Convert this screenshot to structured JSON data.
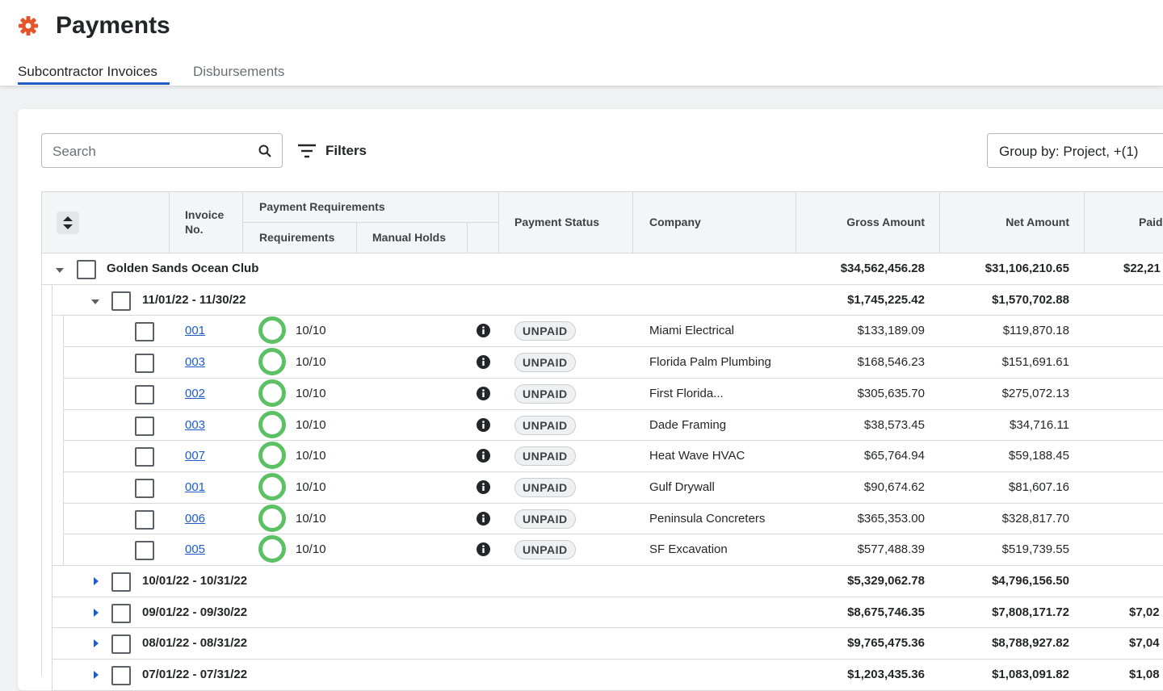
{
  "header": {
    "title": "Payments"
  },
  "tabs": [
    "Subcontractor Invoices",
    "Disbursements"
  ],
  "toolbar": {
    "search_placeholder": "Search",
    "filters": "Filters",
    "group_by": "Group by: Project, +(1)"
  },
  "table": {
    "columns": {
      "invoice_no": "Invoice No.",
      "payment_requirements": "Payment Requirements",
      "requirements": "Requirements",
      "manual_holds": "Manual Holds",
      "payment_status": "Payment Status",
      "company": "Company",
      "gross": "Gross Amount",
      "net": "Net Amount",
      "paid": "Paid"
    },
    "project": {
      "name": "Golden Sands Ocean Club",
      "gross": "$34,562,456.28",
      "net": "$31,106,210.65",
      "paid": "$22,21"
    },
    "groups": [
      {
        "range": "11/01/22 - 11/30/22",
        "gross": "$1,745,225.42",
        "net": "$1,570,702.88",
        "expanded": true,
        "rows": [
          {
            "invoice": "001",
            "requirements": "10/10",
            "status": "UNPAID",
            "company": "Miami Electrical",
            "gross": "$133,189.09",
            "net": "$119,870.18"
          },
          {
            "invoice": "003",
            "requirements": "10/10",
            "status": "UNPAID",
            "company": "Florida Palm Plumbing",
            "gross": "$168,546.23",
            "net": "$151,691.61"
          },
          {
            "invoice": "002",
            "requirements": "10/10",
            "status": "UNPAID",
            "company": "First Florida...",
            "gross": "$305,635.70",
            "net": "$275,072.13"
          },
          {
            "invoice": "003",
            "requirements": "10/10",
            "status": "UNPAID",
            "company": "Dade Framing",
            "gross": "$38,573.45",
            "net": "$34,716.11"
          },
          {
            "invoice": "007",
            "requirements": "10/10",
            "status": "UNPAID",
            "company": "Heat Wave HVAC",
            "gross": "$65,764.94",
            "net": "$59,188.45"
          },
          {
            "invoice": "001",
            "requirements": "10/10",
            "status": "UNPAID",
            "company": "Gulf Drywall",
            "gross": "$90,674.62",
            "net": "$81,607.16"
          },
          {
            "invoice": "006",
            "requirements": "10/10",
            "status": "UNPAID",
            "company": "Peninsula Concreters",
            "gross": "$365,353.00",
            "net": "$328,817.70"
          },
          {
            "invoice": "005",
            "requirements": "10/10",
            "status": "UNPAID",
            "company": "SF Excavation",
            "gross": "$577,488.39",
            "net": "$519,739.55"
          }
        ]
      },
      {
        "range": "10/01/22 - 10/31/22",
        "gross": "$5,329,062.78",
        "net": "$4,796,156.50"
      },
      {
        "range": "09/01/22 - 09/30/22",
        "gross": "$8,675,746.35",
        "net": "$7,808,171.72",
        "paid": "$7,02"
      },
      {
        "range": "08/01/22 - 08/31/22",
        "gross": "$9,765,475.36",
        "net": "$8,788,927.82",
        "paid": "$7,04"
      },
      {
        "range": "07/01/22 - 07/31/22",
        "gross": "$1,203,435.36",
        "net": "$1,083,091.82",
        "paid": "$1,08"
      }
    ]
  }
}
